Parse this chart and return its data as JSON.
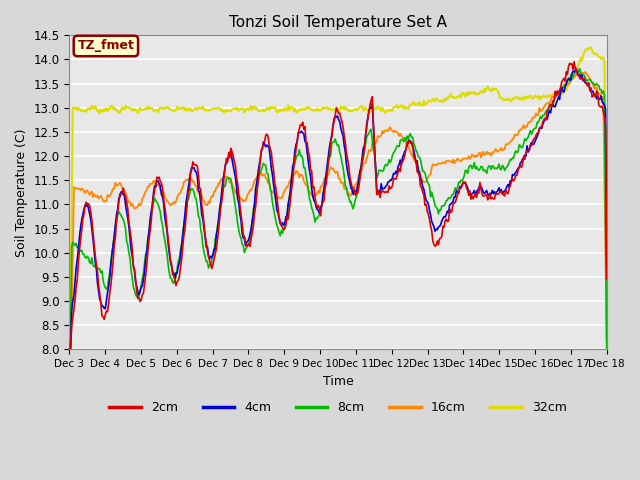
{
  "title": "Tonzi Soil Temperature Set A",
  "xlabel": "Time",
  "ylabel": "Soil Temperature (C)",
  "ylim": [
    8.0,
    14.5
  ],
  "label_annotation": "TZ_fmet",
  "series_colors": {
    "2cm": "#dd0000",
    "4cm": "#0000dd",
    "8cm": "#00bb00",
    "16cm": "#ff8800",
    "32cm": "#dddd00"
  },
  "xtick_labels": [
    "Dec 3",
    "Dec 4",
    "Dec 5",
    "Dec 6",
    "Dec 7",
    "Dec 8",
    "Dec 9",
    "Dec 10",
    "Dec 11",
    "Dec 12",
    "Dec 13",
    "Dec 14",
    "Dec 15",
    "Dec 16",
    "Dec 17",
    "Dec 18"
  ],
  "n_points": 480
}
